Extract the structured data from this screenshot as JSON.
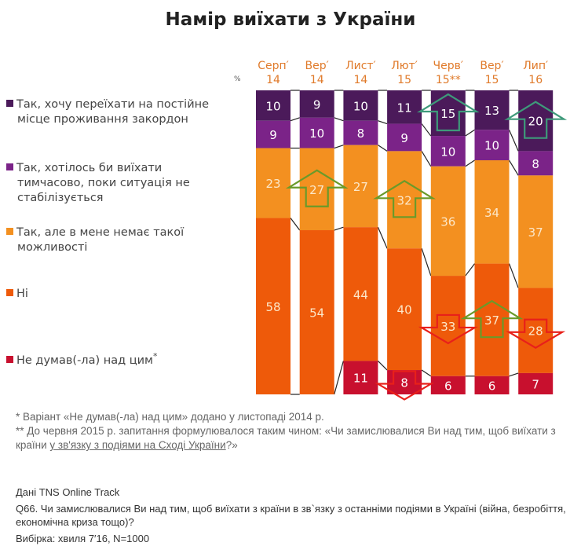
{
  "title": "Намір виїхати з України",
  "percent_sign": "%",
  "colors": {
    "permanent": "#4B1A5A",
    "temporary": "#7B2388",
    "no_opportunity": "#F39020",
    "no": "#EE5A0A",
    "not_thought": "#C8102E",
    "arrow_up": "#3E9A7A",
    "arrow_up_green": "#6A9A2A",
    "arrow_down": "#E8201A",
    "category_label": "#E07A2A"
  },
  "legend": [
    {
      "key": "permanent",
      "lines": [
        "Так, хочу переїхати на постійне",
        "місце проживання закордон"
      ]
    },
    {
      "key": "temporary",
      "lines": [
        "Так, хотілось би виїхати",
        "тимчасово, поки ситуація не",
        "стабілізується"
      ]
    },
    {
      "key": "no_opportunity",
      "lines": [
        "Так, але в мене немає такої",
        "можливості"
      ]
    },
    {
      "key": "no",
      "lines": [
        "Ні"
      ]
    },
    {
      "key": "not_thought",
      "lines": [
        "Не думав(-ла) над цим"
      ],
      "marker": "*"
    }
  ],
  "chart_data": {
    "type": "bar",
    "stacked": true,
    "title": "Намір виїхати з України",
    "xlabel": "",
    "ylabel": "%",
    "ylim": [
      0,
      100
    ],
    "grid": false,
    "legend_position": "left",
    "categories": [
      [
        "Серп′",
        "14"
      ],
      [
        "Вер′",
        "14"
      ],
      [
        "Лист′",
        "14"
      ],
      [
        "Лют′",
        "15"
      ],
      [
        "Черв′",
        "15**"
      ],
      [
        "Вер′",
        "15"
      ],
      [
        "Лип′",
        "16"
      ]
    ],
    "series": [
      {
        "key": "permanent",
        "name": "Так, хочу переїхати на постійне місце проживання закордон",
        "values": [
          10,
          9,
          10,
          11,
          15,
          13,
          20
        ]
      },
      {
        "key": "temporary",
        "name": "Так, хотілось би виїхати тимчасово, поки ситуація не стабілізується",
        "values": [
          9,
          10,
          8,
          9,
          10,
          10,
          8
        ]
      },
      {
        "key": "no_opportunity",
        "name": "Так, але в мене немає такої можливості",
        "values": [
          23,
          27,
          27,
          32,
          36,
          34,
          37
        ]
      },
      {
        "key": "no",
        "name": "Ні",
        "values": [
          58,
          54,
          44,
          40,
          33,
          37,
          28
        ]
      },
      {
        "key": "not_thought",
        "name": "Не думав(-ла) над цим*",
        "values": [
          null,
          null,
          11,
          8,
          6,
          6,
          7
        ]
      }
    ],
    "annotations": [
      {
        "series": "no_opportunity",
        "category_index": 1,
        "type": "arrow-up"
      },
      {
        "series": "no_opportunity",
        "category_index": 3,
        "type": "arrow-up"
      },
      {
        "series": "permanent",
        "category_index": 4,
        "type": "arrow-up"
      },
      {
        "series": "permanent",
        "category_index": 6,
        "type": "arrow-up"
      },
      {
        "series": "no",
        "category_index": 4,
        "type": "arrow-down"
      },
      {
        "series": "no",
        "category_index": 5,
        "type": "arrow-up"
      },
      {
        "series": "no",
        "category_index": 6,
        "type": "arrow-down"
      },
      {
        "series": "not_thought",
        "category_index": 3,
        "type": "arrow-down"
      }
    ]
  },
  "footnotes": {
    "note1": "* Варіант «Не думав(-ла) над цим» додано у листопаді 2014 р.",
    "note2_prefix": "** До червня 2015 р. запитання формулювалося таким чином: «Чи замислювалися Ви над тим, щоб виїхати з країни ",
    "note2_underlined": "у зв'язку з подіями на Сході України",
    "note2_suffix": "?»"
  },
  "source": {
    "data": "Дані TNS Online Track",
    "question": "Q66. Чи замислювалися Ви над тим, щоб виїхати з країни в зв`язку з останніми подіями в Україні (війна, безробіття, економічна криза тощо)?",
    "sample": "Вибірка: хвиля 7′16, N=1000"
  }
}
